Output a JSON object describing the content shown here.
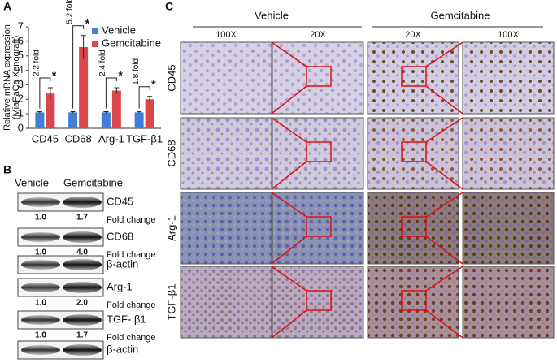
{
  "chart_data": {
    "type": "bar",
    "panel_label": "A",
    "y_label": [
      "Relative mRNA expression",
      "(MiaPaCa Xenograft)"
    ],
    "categories": [
      "CD45",
      "CD68",
      "Arg-1",
      "TGF-β1"
    ],
    "series": [
      {
        "name": "Vehicle",
        "color": "#3f7fd6",
        "values": [
          1.1,
          1.1,
          1.1,
          1.1
        ],
        "errors": [
          0.05,
          0.05,
          0.05,
          0.05
        ]
      },
      {
        "name": "Gemcitabine",
        "color": "#d9474b",
        "values": [
          2.4,
          5.6,
          2.6,
          2.0
        ],
        "errors": [
          0.4,
          0.8,
          0.2,
          0.2
        ]
      }
    ],
    "fold_labels": [
      "2.2 fold",
      "5.2 fold",
      "2.4 fold",
      "1.8 fold"
    ],
    "significance": [
      "*",
      "*",
      "*",
      "*"
    ],
    "ylim": [
      0,
      7
    ],
    "yticks": [
      0,
      1,
      2,
      3,
      4,
      5,
      6,
      7
    ],
    "legend": "top-right"
  },
  "panel_b": {
    "label": "B",
    "columns": [
      "Vehicle",
      "Gemcitabine"
    ],
    "fold_label": "Fold change",
    "blots": [
      {
        "name": "CD45",
        "fold_change": [
          "1.0",
          "1.7"
        ]
      },
      {
        "name": "CD68",
        "fold_change": [
          "1.0",
          "4.0"
        ]
      },
      {
        "name": "β-actin"
      },
      {
        "name": "Arg-1",
        "fold_change": [
          "1.0",
          "2.0"
        ]
      },
      {
        "name": "TGF- β1",
        "fold_change": [
          "1.0",
          "1.7"
        ]
      },
      {
        "name": "β-actin"
      }
    ]
  },
  "panel_c": {
    "label": "C",
    "groups": [
      "Vehicle",
      "Gemcitabine"
    ],
    "magnifications": [
      "100X",
      "20X",
      "20X",
      "100X"
    ],
    "rows": [
      "CD45",
      "CD68",
      "Arg-1",
      "TGF-β1"
    ]
  }
}
